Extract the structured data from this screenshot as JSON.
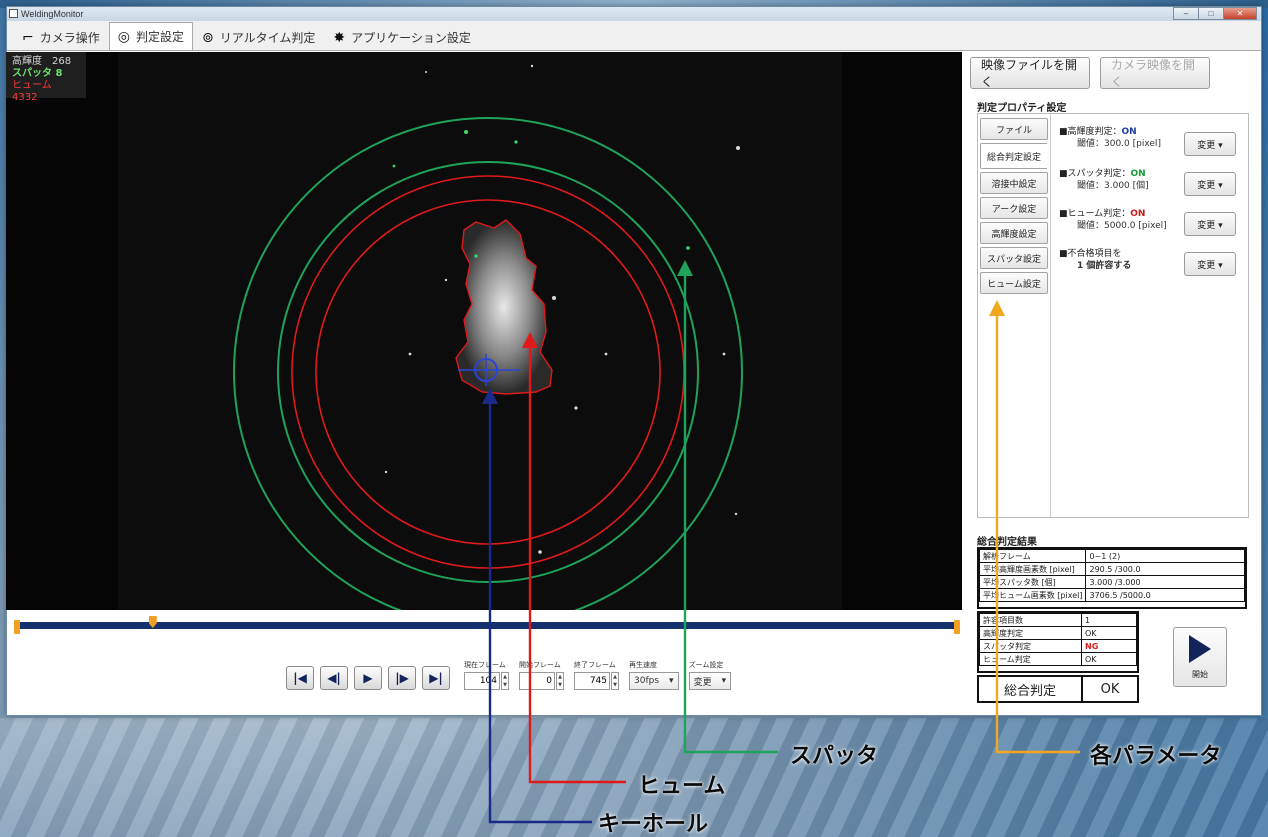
{
  "window": {
    "title": "WeldingMonitor",
    "controls": [
      "–",
      "□",
      "✕"
    ]
  },
  "tabs": [
    {
      "label": "カメラ操作",
      "icon": "camera-icon"
    },
    {
      "label": "判定設定",
      "icon": "judgment-icon",
      "active": true
    },
    {
      "label": "リアルタイム判定",
      "icon": "realtime-icon"
    },
    {
      "label": "アプリケーション設定",
      "icon": "gear-icon"
    }
  ],
  "hud": {
    "brightness": "高輝度　268",
    "spatter": "スパッタ 8",
    "fume": "ヒューム 4332"
  },
  "playback": {
    "progress": 0.14,
    "current_frame_label": "現在フレーム",
    "current_frame": "104",
    "start_frame_label": "開始フレーム",
    "start_frame": "0",
    "end_frame_label": "終了フレーム",
    "end_frame": "745",
    "speed_label": "再生速度",
    "speed": "30fps",
    "zoom_label": "ズーム設定",
    "zoom_button": "変更"
  },
  "panel": {
    "open_file": "映像ファイルを開く",
    "open_camera": "カメラ映像を開く",
    "props_title": "判定プロパティ設定",
    "side_tabs": [
      "ファイル",
      "総合判定設定",
      "溶接中設定",
      "アーク設定",
      "高輝度設定",
      "スパッタ設定",
      "ヒューム設定"
    ],
    "props": [
      {
        "name": "■高輝度判定：",
        "state": "ON",
        "threshold": "閾値：300.0 [pixel]"
      },
      {
        "name": "■スパッタ判定：",
        "state": "ON",
        "threshold": "閾値：3.000 [個]"
      },
      {
        "name": "■ヒューム判定：",
        "state": "ON",
        "threshold": "閾値：5000.0 [pixel]"
      },
      {
        "name": "■不合格項目を",
        "state": "",
        "threshold": "1 個許容する"
      }
    ],
    "change_button": "変更 ▾"
  },
  "results": {
    "title": "総合判定結果",
    "rows": [
      [
        "解析フレーム",
        "0~1 (2)"
      ],
      [
        "平均高輝度画素数 [pixel]",
        "290.5 /300.0"
      ],
      [
        "平均スパッタ数 [個]",
        "3.000 /3.000"
      ],
      [
        "平均ヒューム画素数 [pixel]",
        "3706.5 /5000.0"
      ]
    ],
    "judge_rows": [
      [
        "許容項目数",
        "1"
      ],
      [
        "高輝度判定",
        "OK"
      ],
      [
        "スパッタ判定",
        "NG"
      ],
      [
        "ヒューム判定",
        "OK"
      ]
    ],
    "final_label": "総合判定",
    "final_value": "OK",
    "start_button": "開始"
  },
  "annotations": {
    "spatter": "スパッタ",
    "fume": "ヒューム",
    "keyhole": "キーホール",
    "params": "各パラメータ"
  },
  "colors": {
    "keyhole": "#1b2a8a",
    "fume": "#e01a1a",
    "spatter": "#1fa35a",
    "params": "#f2a81e",
    "timeline": "#16326e"
  }
}
